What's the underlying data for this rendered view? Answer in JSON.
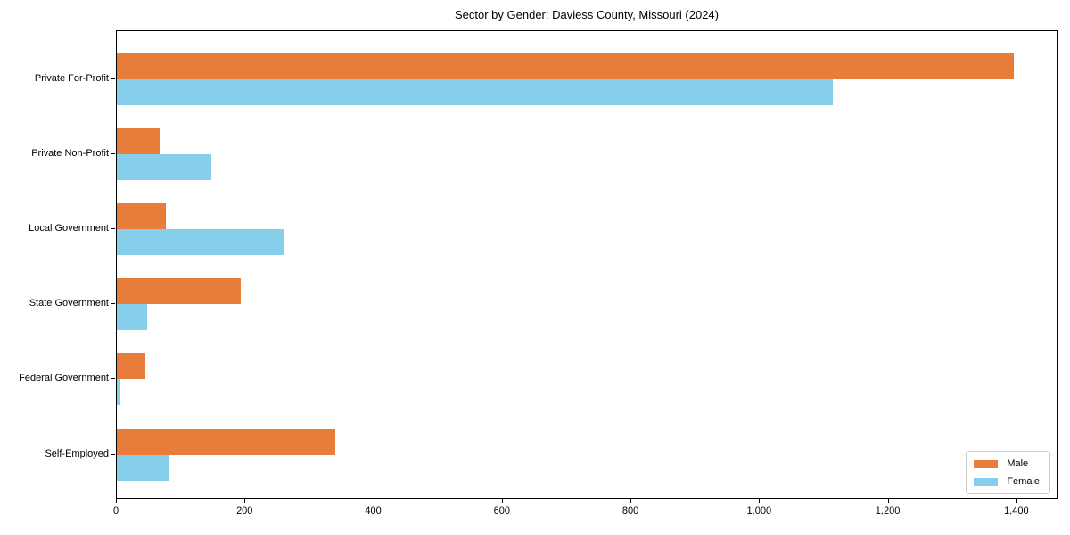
{
  "chart_data": {
    "type": "bar",
    "orientation": "horizontal",
    "title": "Sector by Gender: Daviess County, Missouri (2024)",
    "categories": [
      "Private For-Profit",
      "Private Non-Profit",
      "Local Government",
      "State Government",
      "Federal Government",
      "Self-Employed"
    ],
    "series": [
      {
        "name": "Male",
        "color": "#e87c3b",
        "values": [
          1395,
          68,
          76,
          193,
          44,
          340
        ]
      },
      {
        "name": "Female",
        "color": "#87ceeb",
        "values": [
          1113,
          147,
          259,
          47,
          5,
          82
        ]
      }
    ],
    "xlabel": "",
    "ylabel": "",
    "xlim": [
      0,
      1464
    ],
    "xticks": [
      0,
      200,
      400,
      600,
      800,
      1000,
      1200,
      1400
    ],
    "xtick_labels": [
      "0",
      "200",
      "400",
      "600",
      "800",
      "1,000",
      "1,200",
      "1,400"
    ],
    "grid": false,
    "legend": {
      "position": "lower right",
      "entries": [
        "Male",
        "Female"
      ]
    }
  }
}
